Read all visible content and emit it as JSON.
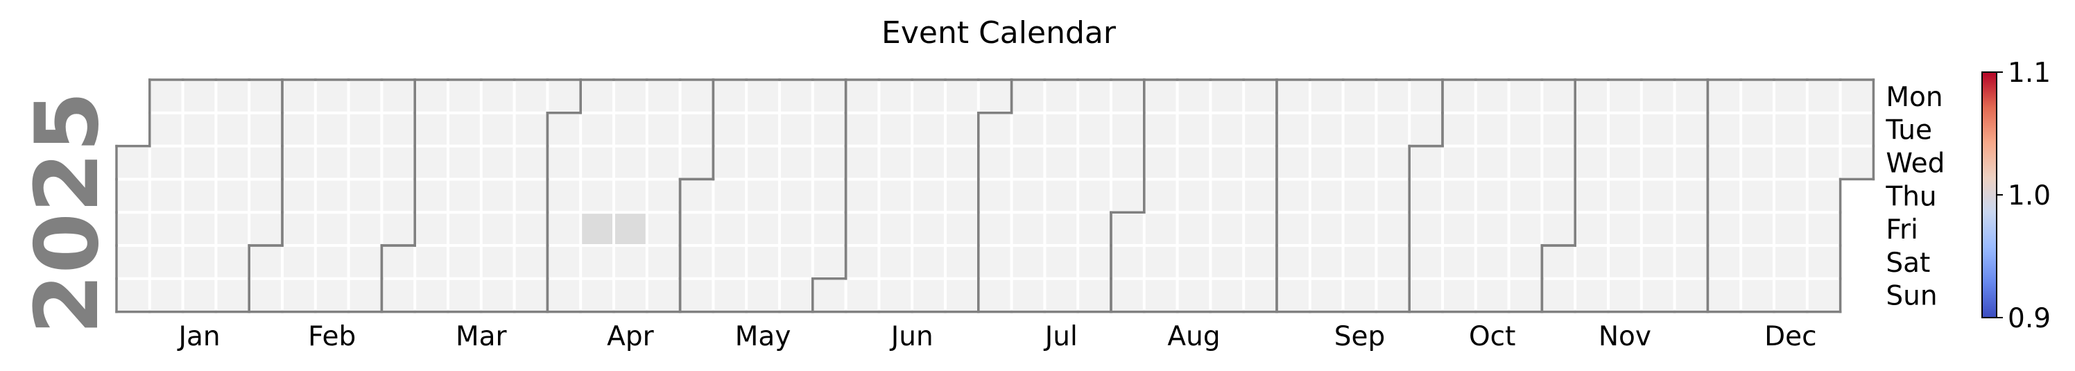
{
  "chart_data": {
    "type": "heatmap",
    "title": "Event Calendar",
    "year_label": "2025",
    "year": 2025,
    "week_start": "Monday",
    "weekday_labels": [
      "Mon",
      "Tue",
      "Wed",
      "Thu",
      "Fri",
      "Sat",
      "Sun"
    ],
    "month_labels": [
      "Jan",
      "Feb",
      "Mar",
      "Apr",
      "May",
      "Jun",
      "Jul",
      "Aug",
      "Sep",
      "Oct",
      "Nov",
      "Dec"
    ],
    "events": [
      {
        "date": "2025-04-11",
        "value": 1.0
      },
      {
        "date": "2025-04-18",
        "value": 1.0
      }
    ],
    "empty_color": "#f2f2f2",
    "event_color": "#dcdcdc",
    "border_color": "#808080",
    "year_label_color": "#808080",
    "colorbar": {
      "min": 0.9,
      "max": 1.1,
      "ticks": [
        "0.9",
        "1.0",
        "1.1"
      ],
      "colormap": "coolwarm",
      "stops": [
        "#3b4cc0",
        "#6788ee",
        "#9abbff",
        "#c9d7f0",
        "#edd1c2",
        "#f7a889",
        "#e26952",
        "#b40426"
      ]
    }
  }
}
